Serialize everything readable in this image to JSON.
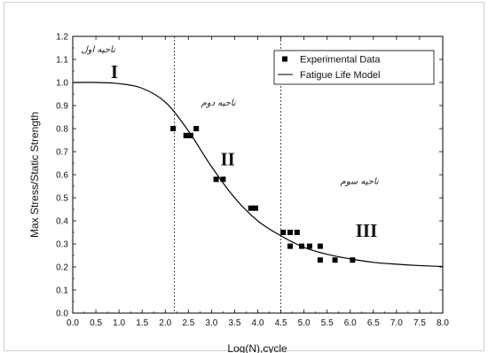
{
  "chart_data": {
    "type": "scatter",
    "xlabel": "Log(N),cycle",
    "ylabel": "Max Stress/Static Strength",
    "xlim": [
      0.0,
      8.0
    ],
    "ylim": [
      0.0,
      1.2
    ],
    "xticks": [
      "0.0",
      "0.5",
      "1.0",
      "1.5",
      "2.0",
      "2.5",
      "3.0",
      "3.5",
      "4.0",
      "4.5",
      "5.0",
      "5.5",
      "6.0",
      "6.5",
      "7.0",
      "7.5",
      "8.0"
    ],
    "yticks": [
      "0.0",
      "0.1",
      "0.2",
      "0.3",
      "0.4",
      "0.5",
      "0.6",
      "0.7",
      "0.8",
      "0.9",
      "1.0",
      "1.1",
      "1.2"
    ],
    "grid": false,
    "legend_position": "top-right",
    "series": [
      {
        "name": "Experimental Data",
        "kind": "markers",
        "marker": "square",
        "color": "#000000",
        "points": [
          [
            2.17,
            0.8
          ],
          [
            2.45,
            0.77
          ],
          [
            2.55,
            0.77
          ],
          [
            2.67,
            0.8
          ],
          [
            3.1,
            0.58
          ],
          [
            3.25,
            0.58
          ],
          [
            3.85,
            0.455
          ],
          [
            3.95,
            0.455
          ],
          [
            4.55,
            0.35
          ],
          [
            4.7,
            0.35
          ],
          [
            4.85,
            0.35
          ],
          [
            4.7,
            0.29
          ],
          [
            4.95,
            0.29
          ],
          [
            5.12,
            0.29
          ],
          [
            5.35,
            0.29
          ],
          [
            5.35,
            0.23
          ],
          [
            5.67,
            0.23
          ],
          [
            6.05,
            0.23
          ]
        ]
      },
      {
        "name": "Fatigue Life Model",
        "kind": "line",
        "color": "#000000",
        "points": [
          [
            0.0,
            1.0
          ],
          [
            0.5,
            1.0
          ],
          [
            1.0,
            0.995
          ],
          [
            1.5,
            0.975
          ],
          [
            2.0,
            0.915
          ],
          [
            2.5,
            0.79
          ],
          [
            3.0,
            0.635
          ],
          [
            3.5,
            0.5
          ],
          [
            4.0,
            0.4
          ],
          [
            4.5,
            0.335
          ],
          [
            5.0,
            0.285
          ],
          [
            5.5,
            0.255
          ],
          [
            6.0,
            0.235
          ],
          [
            6.5,
            0.22
          ],
          [
            7.0,
            0.212
          ],
          [
            7.5,
            0.206
          ],
          [
            8.0,
            0.202
          ]
        ]
      }
    ],
    "vlines": [
      2.2,
      4.5
    ],
    "annotations": [
      {
        "text": "I",
        "x": 0.9,
        "y": 1.02,
        "style": "roman"
      },
      {
        "text": "II",
        "x": 3.35,
        "y": 0.64,
        "style": "roman"
      },
      {
        "text": "III",
        "x": 6.35,
        "y": 0.33,
        "style": "roman"
      },
      {
        "text": "ناحیه اول",
        "x": 0.55,
        "y": 1.13,
        "style": "region"
      },
      {
        "text": "ناحیه دوم",
        "x": 3.15,
        "y": 0.9,
        "style": "region"
      },
      {
        "text": "ناحیه سوم",
        "x": 6.2,
        "y": 0.56,
        "style": "region"
      }
    ]
  }
}
